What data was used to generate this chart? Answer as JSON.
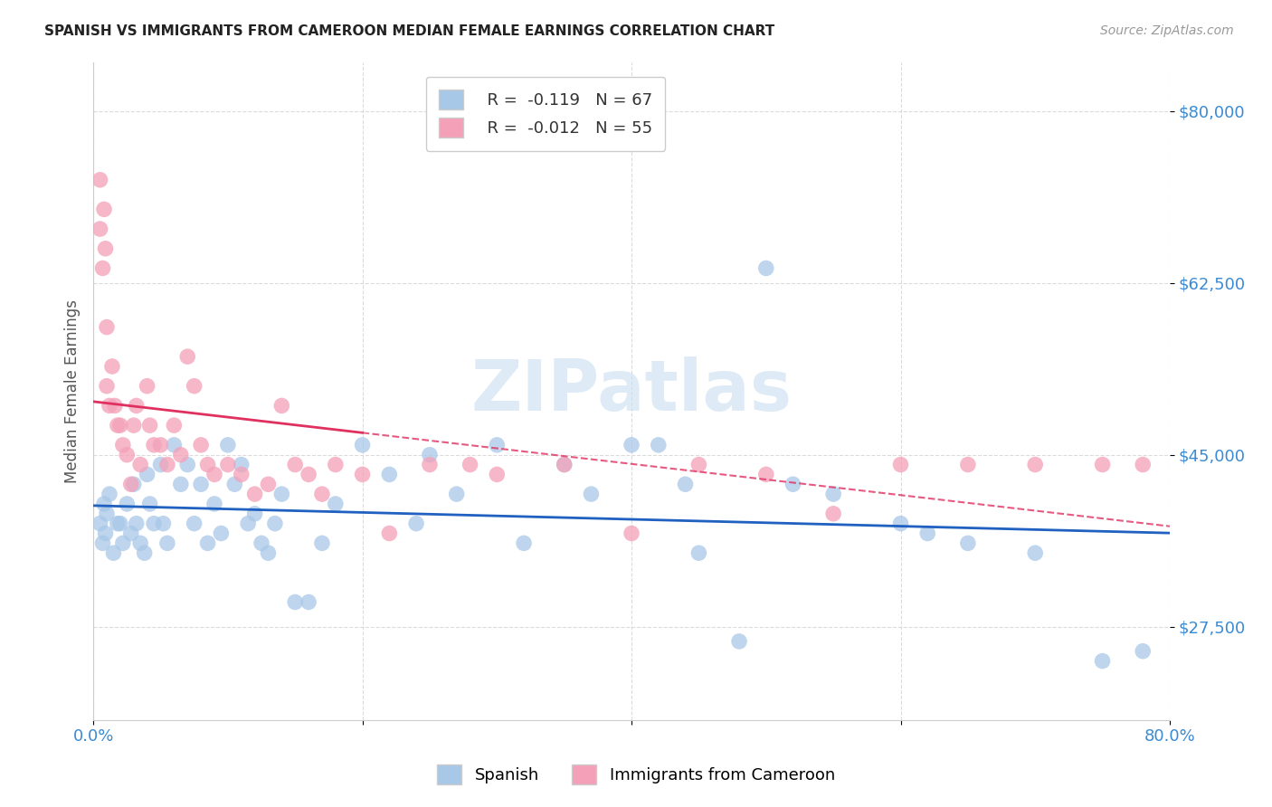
{
  "title": "SPANISH VS IMMIGRANTS FROM CAMEROON MEDIAN FEMALE EARNINGS CORRELATION CHART",
  "source": "Source: ZipAtlas.com",
  "ylabel": "Median Female Earnings",
  "y_ticks": [
    27500,
    45000,
    62500,
    80000
  ],
  "y_tick_labels": [
    "$27,500",
    "$45,000",
    "$62,500",
    "$80,000"
  ],
  "xlim": [
    0.0,
    0.8
  ],
  "ylim": [
    18000,
    85000
  ],
  "watermark": "ZIPatlas",
  "blue_color": "#a8c8e8",
  "pink_color": "#f4a0b8",
  "blue_line_color": "#2060c0",
  "pink_line_color": "#e03060",
  "title_color": "#222222",
  "axis_label_color": "#3a8ad4",
  "spanish_x": [
    0.005,
    0.007,
    0.008,
    0.009,
    0.01,
    0.012,
    0.015,
    0.018,
    0.02,
    0.022,
    0.025,
    0.028,
    0.03,
    0.032,
    0.035,
    0.038,
    0.04,
    0.042,
    0.045,
    0.05,
    0.052,
    0.055,
    0.06,
    0.065,
    0.07,
    0.075,
    0.08,
    0.085,
    0.09,
    0.095,
    0.1,
    0.105,
    0.11,
    0.115,
    0.12,
    0.125,
    0.13,
    0.135,
    0.14,
    0.15,
    0.16,
    0.17,
    0.18,
    0.2,
    0.22,
    0.24,
    0.25,
    0.27,
    0.3,
    0.32,
    0.35,
    0.37,
    0.4,
    0.42,
    0.44,
    0.45,
    0.48,
    0.5,
    0.52,
    0.55,
    0.6,
    0.62,
    0.65,
    0.7,
    0.75,
    0.78
  ],
  "spanish_y": [
    38000,
    36000,
    40000,
    37000,
    39000,
    41000,
    35000,
    38000,
    38000,
    36000,
    40000,
    37000,
    42000,
    38000,
    36000,
    35000,
    43000,
    40000,
    38000,
    44000,
    38000,
    36000,
    46000,
    42000,
    44000,
    38000,
    42000,
    36000,
    40000,
    37000,
    46000,
    42000,
    44000,
    38000,
    39000,
    36000,
    35000,
    38000,
    41000,
    30000,
    30000,
    36000,
    40000,
    46000,
    43000,
    38000,
    45000,
    41000,
    46000,
    36000,
    44000,
    41000,
    46000,
    46000,
    42000,
    35000,
    26000,
    64000,
    42000,
    41000,
    38000,
    37000,
    36000,
    35000,
    24000,
    25000
  ],
  "cameroon_x": [
    0.005,
    0.005,
    0.007,
    0.008,
    0.009,
    0.01,
    0.01,
    0.012,
    0.014,
    0.016,
    0.018,
    0.02,
    0.022,
    0.025,
    0.028,
    0.03,
    0.032,
    0.035,
    0.04,
    0.042,
    0.045,
    0.05,
    0.055,
    0.06,
    0.065,
    0.07,
    0.075,
    0.08,
    0.085,
    0.09,
    0.1,
    0.11,
    0.12,
    0.13,
    0.14,
    0.15,
    0.16,
    0.17,
    0.18,
    0.2,
    0.22,
    0.25,
    0.28,
    0.3,
    0.35,
    0.4,
    0.45,
    0.5,
    0.55,
    0.6,
    0.65,
    0.7,
    0.75,
    0.78
  ],
  "cameroon_y": [
    73000,
    68000,
    64000,
    70000,
    66000,
    58000,
    52000,
    50000,
    54000,
    50000,
    48000,
    48000,
    46000,
    45000,
    42000,
    48000,
    50000,
    44000,
    52000,
    48000,
    46000,
    46000,
    44000,
    48000,
    45000,
    55000,
    52000,
    46000,
    44000,
    43000,
    44000,
    43000,
    41000,
    42000,
    50000,
    44000,
    43000,
    41000,
    44000,
    43000,
    37000,
    44000,
    44000,
    43000,
    44000,
    37000,
    44000,
    43000,
    39000,
    44000,
    44000,
    44000,
    44000,
    44000
  ]
}
